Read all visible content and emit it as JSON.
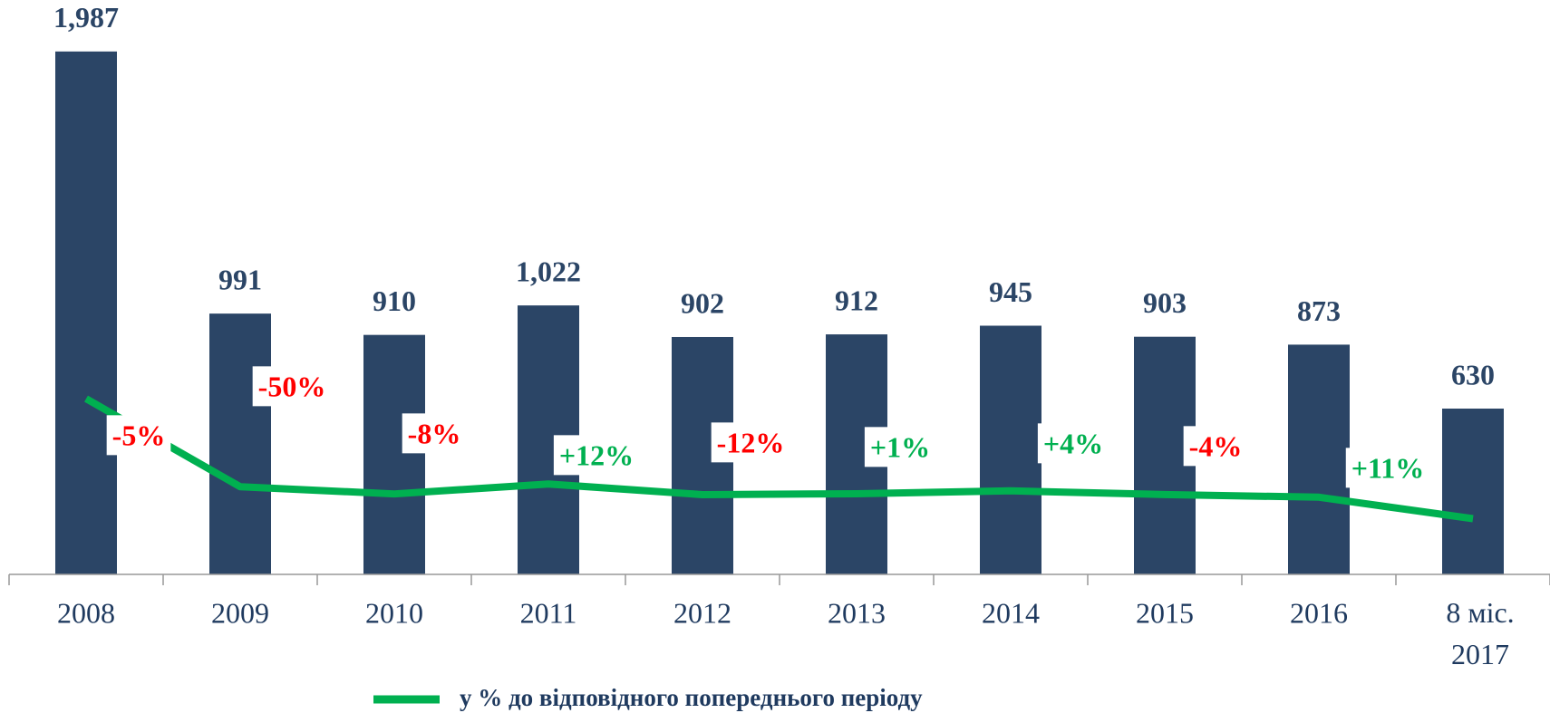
{
  "chart_data": {
    "type": "bar",
    "categories": [
      "2008",
      "2009",
      "2010",
      "2011",
      "2012",
      "2013",
      "2014",
      "2015",
      "2016",
      "8 міс. 2017"
    ],
    "series": [
      {
        "color": "#2b4566",
        "values": [
          1987,
          991,
          910,
          1022,
          902,
          912,
          945,
          903,
          873,
          630
        ],
        "value_labels": [
          "1,987",
          "991",
          "910",
          "1,022",
          "902",
          "912",
          "945",
          "903",
          "873",
          "630"
        ]
      },
      {
        "name": "у % до відповідного попереднього періоду",
        "type": "line",
        "axis": "y2",
        "color": "#00b050",
        "values": [
          1987,
          991,
          910,
          1022,
          902,
          912,
          945,
          903,
          873,
          630
        ]
      }
    ],
    "annotations": [
      {
        "text": "-5%",
        "color": "#ff0000"
      },
      {
        "text": "-50%",
        "color": "#ff0000"
      },
      {
        "text": "-8%",
        "color": "#ff0000"
      },
      {
        "text": "+12%",
        "color": "#00b050"
      },
      {
        "text": "-12%",
        "color": "#ff0000"
      },
      {
        "text": "+1%",
        "color": "#00b050"
      },
      {
        "text": "+4%",
        "color": "#00b050"
      },
      {
        "text": "-4%",
        "color": "#ff0000"
      },
      {
        "text": "+11%",
        "color": "#00b050"
      }
    ],
    "ylim": [
      0,
      2100
    ],
    "y2lim": [
      0,
      6250
    ],
    "legend": "bottom"
  }
}
